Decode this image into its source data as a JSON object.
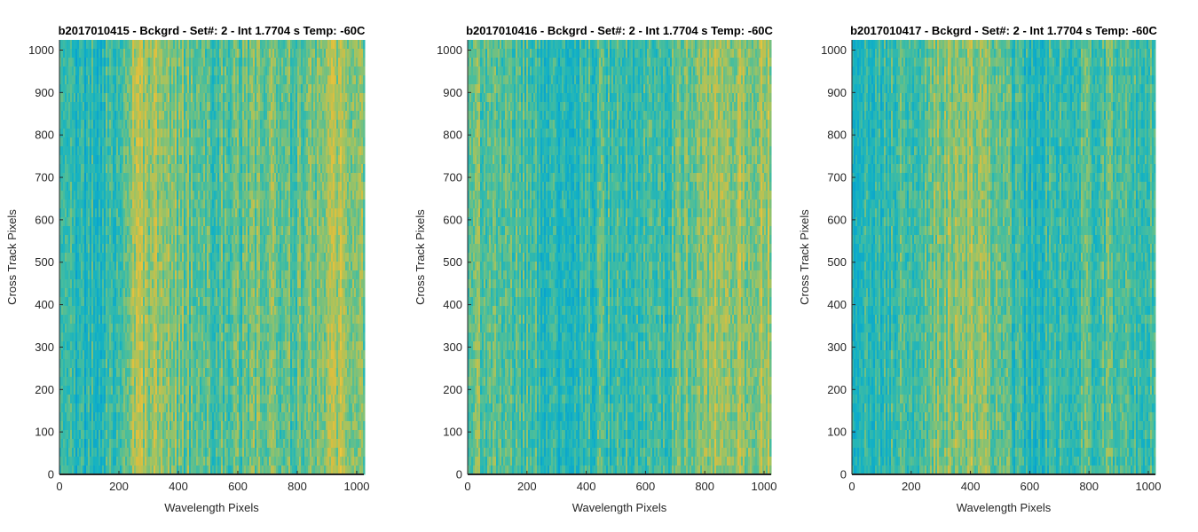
{
  "chart_data": [
    {
      "type": "heatmap",
      "title": "b2017010415 - Bckgrd - Set#: 2 - Int 1.7704 s Temp: -60C",
      "xlabel": "Wavelength Pixels",
      "ylabel": "Cross Track Pixels",
      "xlim": [
        0,
        1024
      ],
      "ylim": [
        0,
        1024
      ],
      "xticks": [
        0,
        200,
        400,
        600,
        800,
        1000
      ],
      "yticks": [
        0,
        100,
        200,
        300,
        400,
        500,
        600,
        700,
        800,
        900,
        1000
      ],
      "grid": false,
      "column_profile": {
        "x": [
          0,
          60,
          140,
          200,
          260,
          330,
          420,
          520,
          620,
          700,
          780,
          860,
          940,
          1000,
          1024
        ],
        "level": [
          0.4,
          0.33,
          0.38,
          0.45,
          0.7,
          0.66,
          0.55,
          0.47,
          0.52,
          0.58,
          0.53,
          0.6,
          0.72,
          0.68,
          0.6
        ]
      }
    },
    {
      "type": "heatmap",
      "title": "b2017010416 - Bckgrd - Set#: 2 - Int 1.7704 s Temp: -60C",
      "xlabel": "Wavelength Pixels",
      "ylabel": "Cross Track Pixels",
      "xlim": [
        0,
        1024
      ],
      "ylim": [
        0,
        1024
      ],
      "xticks": [
        0,
        200,
        400,
        600,
        800,
        1000
      ],
      "yticks": [
        0,
        100,
        200,
        300,
        400,
        500,
        600,
        700,
        800,
        900,
        1000
      ],
      "grid": false,
      "column_profile": {
        "x": [
          0,
          60,
          150,
          250,
          320,
          400,
          480,
          560,
          650,
          720,
          800,
          880,
          960,
          1024
        ],
        "level": [
          0.52,
          0.56,
          0.5,
          0.42,
          0.33,
          0.4,
          0.45,
          0.4,
          0.44,
          0.56,
          0.66,
          0.7,
          0.68,
          0.72
        ]
      }
    },
    {
      "type": "heatmap",
      "title": "b2017010417 - Bckgrd - Set#: 2 - Int 1.7704 s Temp: -60C",
      "xlabel": "Wavelength Pixels",
      "ylabel": "Cross Track Pixels",
      "xlim": [
        0,
        1024
      ],
      "ylim": [
        0,
        1024
      ],
      "xticks": [
        0,
        200,
        400,
        600,
        800,
        1000
      ],
      "yticks": [
        0,
        100,
        200,
        300,
        400,
        500,
        600,
        700,
        800,
        900,
        1000
      ],
      "grid": false,
      "column_profile": {
        "x": [
          0,
          40,
          120,
          220,
          320,
          400,
          480,
          560,
          620,
          680,
          760,
          860,
          960,
          1024
        ],
        "level": [
          0.25,
          0.35,
          0.42,
          0.5,
          0.64,
          0.7,
          0.6,
          0.42,
          0.34,
          0.4,
          0.48,
          0.5,
          0.46,
          0.48
        ]
      }
    }
  ]
}
